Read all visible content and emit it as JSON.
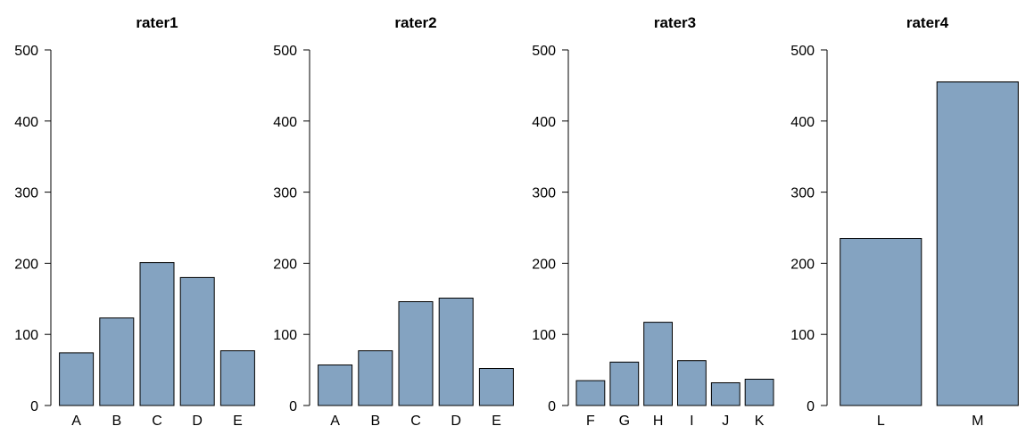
{
  "colors": {
    "bar_fill": "#84a3c1",
    "bar_stroke": "#000000",
    "axis": "#000000",
    "background": "#ffffff"
  },
  "chart_data": [
    {
      "type": "bar",
      "title": "rater1",
      "categories": [
        "A",
        "B",
        "C",
        "D",
        "E"
      ],
      "values": [
        74,
        123,
        201,
        180,
        77
      ],
      "xlabel": "",
      "ylabel": "",
      "ylim": [
        0,
        500
      ],
      "yticks": [
        "0",
        "100",
        "200",
        "300",
        "400",
        "500"
      ],
      "grid": false
    },
    {
      "type": "bar",
      "title": "rater2",
      "categories": [
        "A",
        "B",
        "C",
        "D",
        "E"
      ],
      "values": [
        57,
        77,
        146,
        151,
        52
      ],
      "xlabel": "",
      "ylabel": "",
      "ylim": [
        0,
        500
      ],
      "yticks": [
        "0",
        "100",
        "200",
        "300",
        "400",
        "500"
      ],
      "grid": false
    },
    {
      "type": "bar",
      "title": "rater3",
      "categories": [
        "F",
        "G",
        "H",
        "I",
        "J",
        "K"
      ],
      "values": [
        35,
        61,
        117,
        63,
        32,
        37
      ],
      "xlabel": "",
      "ylabel": "",
      "ylim": [
        0,
        500
      ],
      "yticks": [
        "0",
        "100",
        "200",
        "300",
        "400",
        "500"
      ],
      "grid": false
    },
    {
      "type": "bar",
      "title": "rater4",
      "categories": [
        "L",
        "M"
      ],
      "values": [
        235,
        455
      ],
      "xlabel": "",
      "ylabel": "",
      "ylim": [
        0,
        500
      ],
      "yticks": [
        "0",
        "100",
        "200",
        "300",
        "400",
        "500"
      ],
      "grid": false
    }
  ]
}
